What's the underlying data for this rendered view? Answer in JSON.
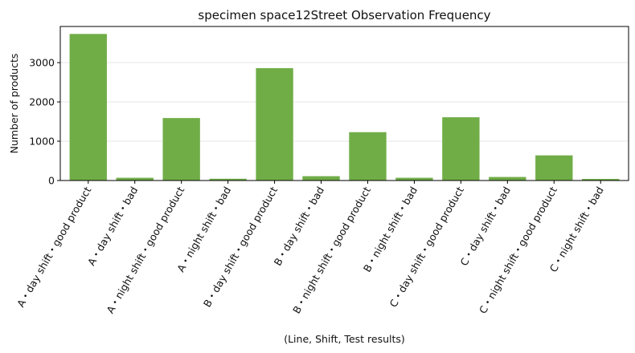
{
  "chart_data": {
    "type": "bar",
    "title": "specimen space12Street Observation Frequency",
    "xlabel": "(Line, Shift, Test results)",
    "ylabel": "Number of products",
    "categories": [
      "A・day shift・good product",
      "A・day shift・bad",
      "A・night shift・good product",
      "A・night shift・bad",
      "B・day shift・good product",
      "B・day shift・bad",
      "B・night shift・good product",
      "B・night shift・bad",
      "C・day shift・good product",
      "C・day shift・bad",
      "C・night shift・good product",
      "C・night shift・bad"
    ],
    "values": [
      3730,
      70,
      1590,
      45,
      2860,
      110,
      1230,
      70,
      1610,
      90,
      640,
      40
    ],
    "ylim": [
      0,
      3920
    ],
    "yticks": [
      0,
      1000,
      2000,
      3000
    ],
    "grid": "horizontal",
    "bar_color": "#70ad47"
  }
}
